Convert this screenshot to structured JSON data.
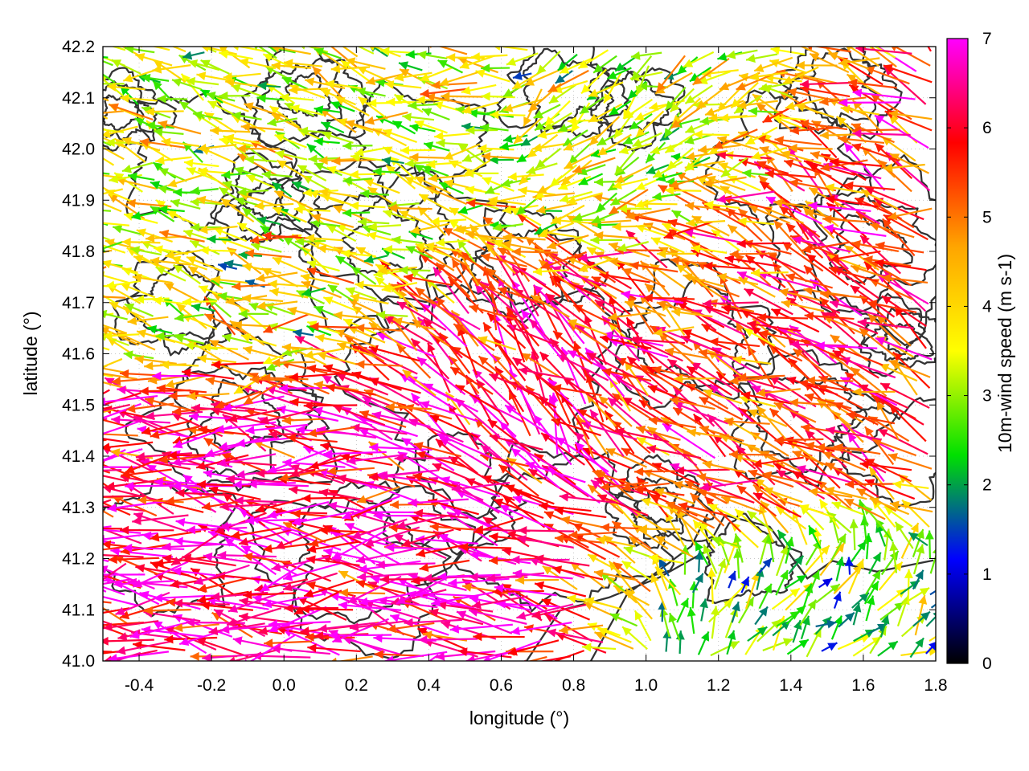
{
  "chart_data": {
    "type": "vector-field",
    "xlabel": "longitude (°)",
    "ylabel": "latitude (°)",
    "xlim": [
      -0.5,
      1.8
    ],
    "ylim": [
      41.0,
      42.2
    ],
    "xticks": [
      "-0.4",
      "-0.2",
      "0.0",
      "0.2",
      "0.4",
      "0.6",
      "0.8",
      "1.0",
      "1.2",
      "1.4",
      "1.6",
      "1.8"
    ],
    "yticks": [
      "41.0",
      "41.1",
      "41.2",
      "41.3",
      "41.4",
      "41.5",
      "41.6",
      "41.7",
      "41.8",
      "41.9",
      "42.0",
      "42.1",
      "42.2"
    ],
    "grid": true,
    "colorbar": {
      "title": "10m-wind speed (m s-1)",
      "range": [
        0,
        7
      ],
      "ticks": [
        "0",
        "1",
        "2",
        "3",
        "4",
        "5",
        "6",
        "7"
      ],
      "colors": [
        "#000000",
        "#0000ff",
        "#00e000",
        "#ffff00",
        "#ffa500",
        "#ff0000",
        "#ff00ff"
      ]
    },
    "wind_regimes": [
      {
        "lon": [
          -0.5,
          0.55
        ],
        "lat": [
          41.0,
          41.45
        ],
        "u": -5.5,
        "v": 0.4,
        "speed": 6.5
      },
      {
        "lon": [
          0.4,
          1.0
        ],
        "lat": [
          41.35,
          41.75
        ],
        "u": -1.5,
        "v": 2.0,
        "speed": 6.2
      },
      {
        "lon": [
          0.9,
          1.8
        ],
        "lat": [
          41.3,
          41.95
        ],
        "u": -2.5,
        "v": 1.2,
        "speed": 5.5
      },
      {
        "lon": [
          -0.5,
          0.6
        ],
        "lat": [
          41.7,
          42.2
        ],
        "u": -2.5,
        "v": 0.6,
        "speed": 3.5
      },
      {
        "lon": [
          0.6,
          1.3
        ],
        "lat": [
          41.8,
          42.2
        ],
        "u": -1.0,
        "v": -0.8,
        "speed": 3.2
      },
      {
        "lon": [
          1.15,
          1.8
        ],
        "lat": [
          41.0,
          41.25
        ],
        "u": 0.4,
        "v": 0.4,
        "speed": 2.5
      }
    ]
  }
}
